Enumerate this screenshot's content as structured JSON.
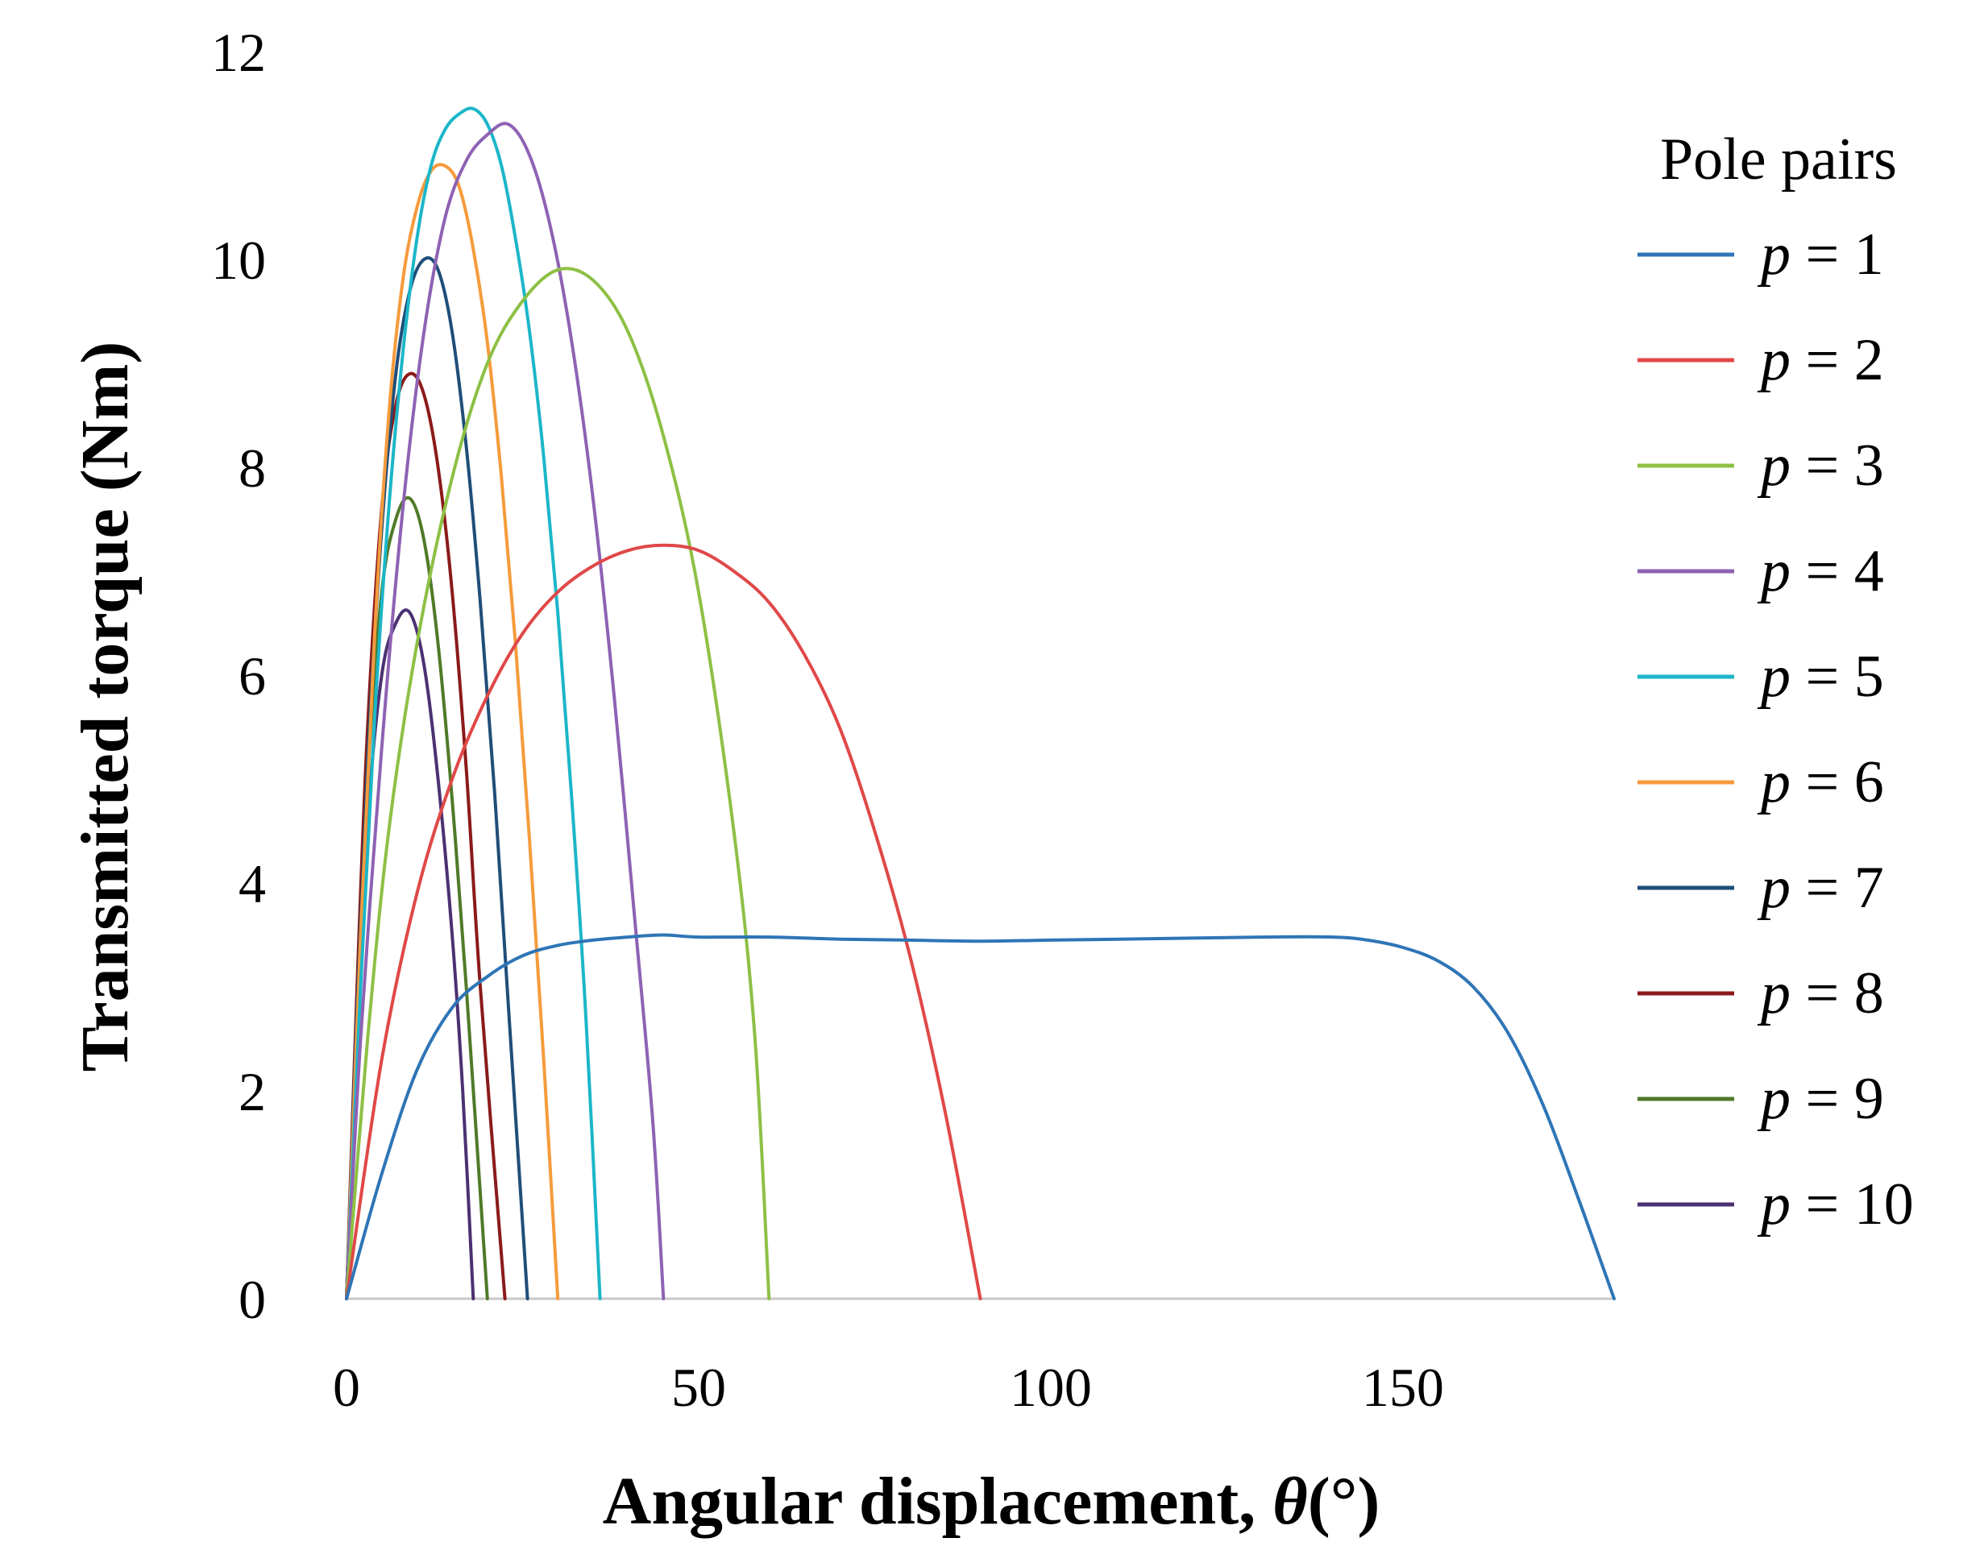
{
  "chart_data": {
    "type": "line",
    "xlabel": "Angular displacement, ",
    "xlabel_symbol": "θ",
    "xlabel_unit": "(°)",
    "ylabel": "Transmitted torque (Nm)",
    "xlim": [
      0,
      180
    ],
    "ylim": [
      0,
      12
    ],
    "xticks": [
      0,
      50,
      100,
      150
    ],
    "xtick_labels": [
      "0",
      "50",
      "100",
      "150"
    ],
    "yticks": [
      0,
      2,
      4,
      6,
      8,
      10,
      12
    ],
    "ytick_labels": [
      "0",
      "2",
      "4",
      "6",
      "8",
      "10",
      "12"
    ],
    "grid": false,
    "legend": {
      "title": "Pole pairs",
      "position": "right",
      "var": "p",
      "eq": " = "
    },
    "series": [
      {
        "name": "p = 1",
        "p": 1,
        "color": "#2E75B6",
        "points": [
          [
            0,
            0
          ],
          [
            5,
            1.2
          ],
          [
            10,
            2.2
          ],
          [
            15,
            2.8
          ],
          [
            20,
            3.1
          ],
          [
            25,
            3.3
          ],
          [
            30,
            3.4
          ],
          [
            35,
            3.45
          ],
          [
            40,
            3.48
          ],
          [
            45,
            3.5
          ],
          [
            50,
            3.48
          ],
          [
            60,
            3.48
          ],
          [
            70,
            3.46
          ],
          [
            80,
            3.45
          ],
          [
            90,
            3.44
          ],
          [
            100,
            3.45
          ],
          [
            110,
            3.46
          ],
          [
            120,
            3.47
          ],
          [
            130,
            3.48
          ],
          [
            140,
            3.48
          ],
          [
            145,
            3.45
          ],
          [
            150,
            3.38
          ],
          [
            155,
            3.25
          ],
          [
            160,
            3.0
          ],
          [
            165,
            2.55
          ],
          [
            170,
            1.85
          ],
          [
            175,
            0.95
          ],
          [
            180,
            0
          ]
        ]
      },
      {
        "name": "p = 2",
        "p": 2,
        "color": "#E04848",
        "points": [
          [
            0,
            0
          ],
          [
            5,
            2.3
          ],
          [
            10,
            3.9
          ],
          [
            15,
            5.0
          ],
          [
            20,
            5.8
          ],
          [
            25,
            6.4
          ],
          [
            30,
            6.8
          ],
          [
            35,
            7.05
          ],
          [
            40,
            7.2
          ],
          [
            45,
            7.25
          ],
          [
            50,
            7.2
          ],
          [
            55,
            7.0
          ],
          [
            60,
            6.7
          ],
          [
            65,
            6.2
          ],
          [
            70,
            5.5
          ],
          [
            75,
            4.5
          ],
          [
            80,
            3.3
          ],
          [
            85,
            1.8
          ],
          [
            90,
            0
          ]
        ]
      },
      {
        "name": "p = 3",
        "p": 3,
        "color": "#8DC045",
        "points": [
          [
            0,
            0
          ],
          [
            3,
            2.5
          ],
          [
            6,
            4.5
          ],
          [
            10,
            6.3
          ],
          [
            15,
            7.9
          ],
          [
            20,
            9.0
          ],
          [
            25,
            9.6
          ],
          [
            30,
            9.9
          ],
          [
            35,
            9.8
          ],
          [
            40,
            9.3
          ],
          [
            45,
            8.3
          ],
          [
            50,
            6.8
          ],
          [
            55,
            4.5
          ],
          [
            58,
            2.5
          ],
          [
            60,
            0
          ]
        ]
      },
      {
        "name": "p = 4",
        "p": 4,
        "color": "#8E62B4",
        "points": [
          [
            0,
            0
          ],
          [
            2,
            2.5
          ],
          [
            5,
            5.3
          ],
          [
            8,
            7.6
          ],
          [
            11,
            9.3
          ],
          [
            14,
            10.4
          ],
          [
            17,
            10.95
          ],
          [
            20,
            11.2
          ],
          [
            23,
            11.3
          ],
          [
            26,
            11.0
          ],
          [
            29,
            10.3
          ],
          [
            32,
            9.2
          ],
          [
            35,
            7.7
          ],
          [
            38,
            5.8
          ],
          [
            41,
            3.6
          ],
          [
            43.5,
            1.7
          ],
          [
            45,
            0
          ]
        ]
      },
      {
        "name": "p = 5",
        "p": 5,
        "color": "#1CB6C8",
        "points": [
          [
            0,
            0
          ],
          [
            2,
            3.0
          ],
          [
            4,
            5.6
          ],
          [
            6,
            7.6
          ],
          [
            8,
            9.1
          ],
          [
            10,
            10.2
          ],
          [
            12,
            10.9
          ],
          [
            14,
            11.25
          ],
          [
            16,
            11.4
          ],
          [
            18,
            11.45
          ],
          [
            20,
            11.3
          ],
          [
            22,
            10.9
          ],
          [
            24,
            10.2
          ],
          [
            26,
            9.3
          ],
          [
            28,
            8.1
          ],
          [
            30,
            6.6
          ],
          [
            32,
            4.8
          ],
          [
            34,
            2.7
          ],
          [
            36,
            0
          ]
        ]
      },
      {
        "name": "p = 6",
        "p": 6,
        "color": "#F59B3C",
        "points": [
          [
            0,
            0
          ],
          [
            2,
            3.5
          ],
          [
            4,
            6.4
          ],
          [
            6,
            8.5
          ],
          [
            8,
            9.8
          ],
          [
            10,
            10.5
          ],
          [
            12,
            10.85
          ],
          [
            14,
            10.9
          ],
          [
            16,
            10.7
          ],
          [
            18,
            10.1
          ],
          [
            20,
            9.2
          ],
          [
            22,
            7.9
          ],
          [
            24,
            6.3
          ],
          [
            26,
            4.4
          ],
          [
            28,
            2.3
          ],
          [
            30,
            0
          ]
        ]
      },
      {
        "name": "p = 7",
        "p": 7,
        "color": "#1F4E79",
        "points": [
          [
            0,
            0
          ],
          [
            1.5,
            2.8
          ],
          [
            3,
            5.2
          ],
          [
            5,
            7.4
          ],
          [
            7,
            8.9
          ],
          [
            9,
            9.7
          ],
          [
            11,
            10.0
          ],
          [
            13,
            9.9
          ],
          [
            15,
            9.3
          ],
          [
            17,
            8.2
          ],
          [
            19,
            6.7
          ],
          [
            21,
            4.9
          ],
          [
            23,
            2.8
          ],
          [
            25.7,
            0
          ]
        ]
      },
      {
        "name": "p = 8",
        "p": 8,
        "color": "#8B1A1A",
        "points": [
          [
            0,
            0
          ],
          [
            1.5,
            3.0
          ],
          [
            3,
            5.5
          ],
          [
            5,
            7.6
          ],
          [
            7,
            8.6
          ],
          [
            9,
            8.9
          ],
          [
            11,
            8.7
          ],
          [
            13,
            8.0
          ],
          [
            15,
            6.8
          ],
          [
            17,
            5.1
          ],
          [
            19,
            3.0
          ],
          [
            22.5,
            0
          ]
        ]
      },
      {
        "name": "p = 9",
        "p": 9,
        "color": "#4F7A28",
        "points": [
          [
            0,
            0
          ],
          [
            1.5,
            2.8
          ],
          [
            3,
            5.0
          ],
          [
            5,
            6.8
          ],
          [
            7,
            7.5
          ],
          [
            9,
            7.7
          ],
          [
            11,
            7.3
          ],
          [
            13,
            6.3
          ],
          [
            15,
            4.8
          ],
          [
            17,
            3.0
          ],
          [
            20,
            0
          ]
        ]
      },
      {
        "name": "p = 10",
        "p": 10,
        "color": "#4B3172",
        "points": [
          [
            0,
            0
          ],
          [
            1.5,
            2.6
          ],
          [
            3,
            4.6
          ],
          [
            5,
            6.0
          ],
          [
            7,
            6.5
          ],
          [
            9,
            6.6
          ],
          [
            11,
            6.1
          ],
          [
            13,
            5.0
          ],
          [
            15,
            3.5
          ],
          [
            16.5,
            2.0
          ],
          [
            18,
            0
          ]
        ]
      }
    ]
  }
}
